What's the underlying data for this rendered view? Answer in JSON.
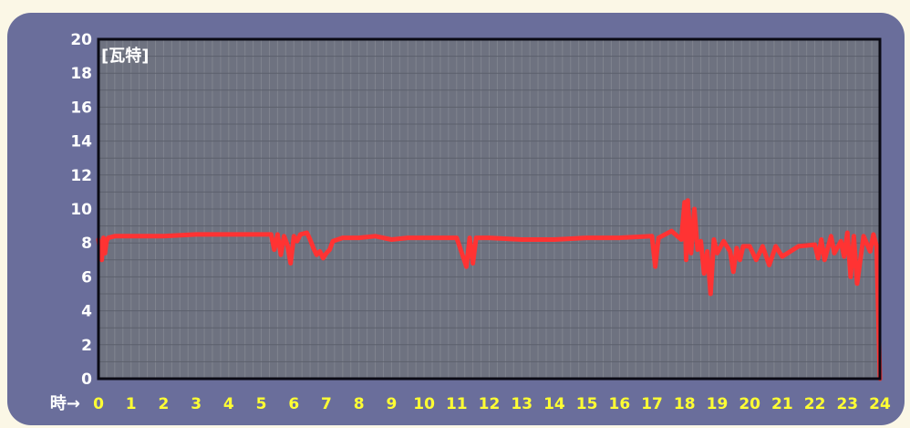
{
  "chart_data": {
    "type": "line",
    "unit_label": "[瓦特]",
    "xlabel": "時→",
    "ylabel": "",
    "xlim": [
      0,
      24
    ],
    "ylim": [
      0,
      20
    ],
    "yticks": [
      0,
      2,
      4,
      6,
      8,
      10,
      12,
      14,
      16,
      18,
      20
    ],
    "xticks": [
      0,
      1,
      2,
      3,
      4,
      5,
      6,
      7,
      8,
      9,
      10,
      11,
      12,
      13,
      14,
      15,
      16,
      17,
      18,
      19,
      20,
      21,
      22,
      23,
      24
    ],
    "grid": true,
    "series": [
      {
        "color": "#ff3333",
        "x": [
          0,
          0.1,
          0.15,
          0.2,
          0.25,
          0.3,
          0.5,
          1,
          2,
          3,
          4,
          5,
          5.3,
          5.4,
          5.5,
          5.6,
          5.7,
          5.8,
          5.9,
          6,
          6.1,
          6.2,
          6.4,
          6.5,
          6.6,
          6.7,
          6.8,
          6.9,
          7,
          7.1,
          7.2,
          7.5,
          8,
          8.5,
          9,
          9.5,
          10,
          11,
          11.3,
          11.4,
          11.5,
          11.6,
          12,
          13,
          14,
          15,
          16,
          17,
          17.1,
          17.2,
          17.3,
          17.6,
          17.9,
          18,
          18.05,
          18.1,
          18.2,
          18.3,
          18.4,
          18.5,
          18.6,
          18.7,
          18.8,
          18.9,
          19,
          19.2,
          19.4,
          19.5,
          19.6,
          19.7,
          19.8,
          20,
          20.2,
          20.4,
          20.6,
          20.8,
          21,
          21.5,
          22,
          22.1,
          22.2,
          22.3,
          22.5,
          22.6,
          22.8,
          22.9,
          23,
          23.1,
          23.2,
          23.3,
          23.5,
          23.7,
          23.8,
          23.9,
          24
        ],
        "values": [
          8.2,
          7.0,
          8.3,
          7.4,
          8.1,
          8.3,
          8.4,
          8.4,
          8.4,
          8.5,
          8.5,
          8.5,
          8.5,
          7.6,
          8.5,
          7.3,
          8.4,
          7.9,
          6.8,
          8.4,
          8.1,
          8.5,
          8.6,
          8.2,
          7.7,
          7.3,
          7.5,
          7.1,
          7.4,
          7.6,
          8.1,
          8.3,
          8.3,
          8.4,
          8.2,
          8.3,
          8.3,
          8.3,
          6.6,
          8.3,
          6.8,
          8.3,
          8.3,
          8.2,
          8.2,
          8.3,
          8.3,
          8.4,
          6.6,
          8.3,
          8.4,
          8.7,
          8.2,
          10.4,
          7.0,
          10.5,
          7.4,
          10.0,
          7.6,
          8.1,
          6.2,
          7.5,
          5.0,
          8.2,
          7.4,
          8.1,
          7.5,
          6.3,
          7.7,
          7.0,
          7.8,
          7.8,
          7.0,
          7.8,
          6.7,
          7.8,
          7.2,
          7.8,
          7.9,
          7.1,
          8.2,
          7.0,
          8.4,
          7.4,
          8.1,
          7.2,
          8.6,
          6.0,
          8.4,
          5.6,
          8.4,
          7.5,
          8.5,
          7.8,
          0
        ]
      }
    ]
  }
}
